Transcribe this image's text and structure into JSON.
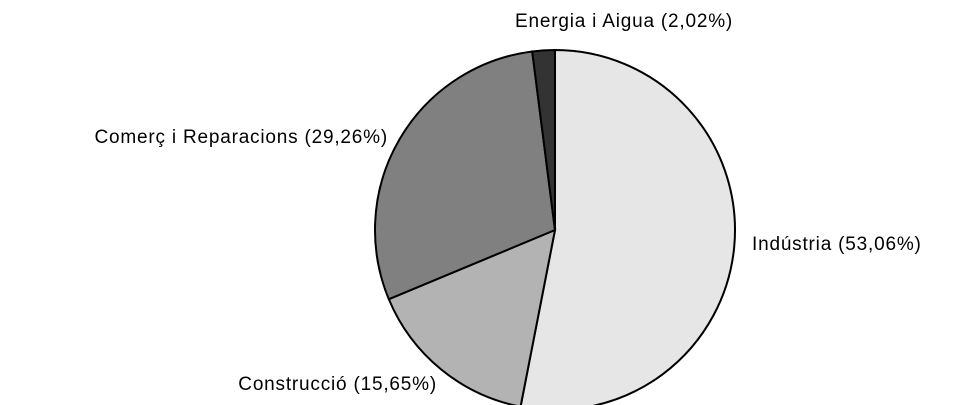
{
  "chart_data": {
    "type": "pie",
    "labels": [
      "Indústria (53,06%)",
      "Construcció (15,65%)",
      "Comerç i Reparacions (29,26%)",
      "Energia i Aigua (2,02%)"
    ],
    "values": [
      53.06,
      15.65,
      29.26,
      2.02
    ],
    "colors": [
      "#e6e6e6",
      "#b3b3b3",
      "#808080",
      "#333333"
    ]
  }
}
